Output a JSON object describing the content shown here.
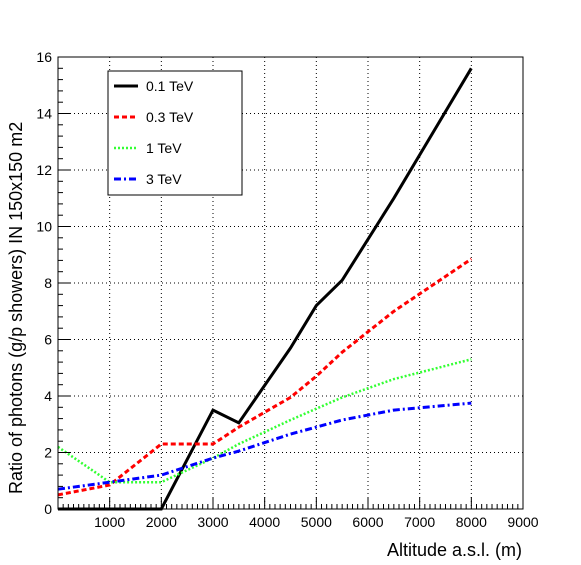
{
  "chart_data": {
    "type": "line",
    "xlabel": "Altitude a.s.l. (m)",
    "ylabel": "Ratio of photons (g/p showers) IN 150x150 m2",
    "xlim": [
      0,
      9000
    ],
    "ylim": [
      0,
      16
    ],
    "x_ticks": [
      1000,
      2000,
      3000,
      4000,
      5000,
      6000,
      7000,
      8000,
      9000
    ],
    "y_ticks": [
      0,
      2,
      4,
      6,
      8,
      10,
      12,
      14,
      16
    ],
    "grid": true,
    "legend_position": "top-left",
    "series": [
      {
        "name": "0.1 TeV",
        "color": "#000000",
        "style": "solid",
        "x": [
          0,
          1000,
          2000,
          3000,
          3500,
          4500,
          5000,
          5500,
          6500,
          8000
        ],
        "y": [
          0,
          0,
          0,
          3.5,
          3.05,
          5.7,
          7.2,
          8.1,
          11.0,
          15.6
        ]
      },
      {
        "name": "0.3 TeV",
        "color": "#ff0000",
        "style": "dashed",
        "x": [
          0,
          1000,
          2000,
          3000,
          3500,
          4500,
          5000,
          5500,
          6500,
          8000
        ],
        "y": [
          0.5,
          0.85,
          2.3,
          2.3,
          2.9,
          3.95,
          4.7,
          5.55,
          7.0,
          8.85
        ]
      },
      {
        "name": "1 TeV",
        "color": "#33ff33",
        "style": "dotted",
        "x": [
          0,
          1000,
          2000,
          3000,
          3500,
          4500,
          5000,
          5500,
          6500,
          8000
        ],
        "y": [
          2.2,
          0.95,
          0.95,
          1.8,
          2.3,
          3.15,
          3.55,
          3.95,
          4.6,
          5.3
        ]
      },
      {
        "name": "3 TeV",
        "color": "#0000ff",
        "style": "dashdot",
        "x": [
          0,
          1000,
          2000,
          3000,
          3500,
          4500,
          5000,
          5500,
          6500,
          8000
        ],
        "y": [
          0.7,
          0.95,
          1.2,
          1.8,
          2.05,
          2.65,
          2.9,
          3.15,
          3.5,
          3.75
        ]
      }
    ]
  }
}
